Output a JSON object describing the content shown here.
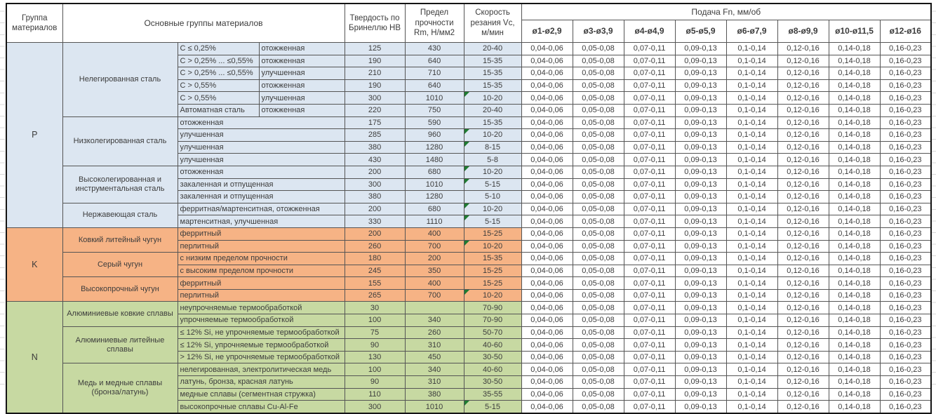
{
  "header": {
    "col_group": "Группа материалов",
    "col_materials": "Основные группы материалов",
    "col_hb": "Твердость по Бринеллю HB",
    "col_rm": "Предел прочности Rm, Н/мм2",
    "col_vc": "Скорость резания Vc, м/мин",
    "feed_title": "Подача Fn, мм/об",
    "feed_cols": [
      "ø1-ø2,9",
      "ø3-ø3,9",
      "ø4-ø4,9",
      "ø5-ø5,9",
      "ø6-ø7,9",
      "ø8-ø9,9",
      "ø10-ø11,5",
      "ø12-ø16"
    ]
  },
  "colors": {
    "p": "#dce6f1",
    "k": "#f6b385",
    "n": "#c7d9a2",
    "marker": "#1e7b31"
  },
  "feed_values": [
    "0,04-0,06",
    "0,05-0,08",
    "0,07-0,11",
    "0,09-0,13",
    "0,1-0,14",
    "0,12-0,16",
    "0,14-0,18",
    "0,16-0,23"
  ],
  "groups": [
    {
      "letter": "P",
      "color_key": "p",
      "subgroups": [
        {
          "name": "Нелегированная сталь",
          "rows": [
            {
              "desc": [
                "C ≤ 0,25%",
                "отожженная"
              ],
              "hb": "125",
              "rm": "430",
              "vc": "20-40",
              "marker": false
            },
            {
              "desc": [
                "C > 0,25% ... ≤0,55%",
                "отожженная"
              ],
              "hb": "190",
              "rm": "640",
              "vc": "15-35",
              "marker": false
            },
            {
              "desc": [
                "C > 0,25% ... ≤0,55%",
                "улучшенная"
              ],
              "hb": "210",
              "rm": "710",
              "vc": "15-35",
              "marker": false
            },
            {
              "desc": [
                "C > 0,55%",
                "отожженная"
              ],
              "hb": "190",
              "rm": "640",
              "vc": "15-35",
              "marker": false
            },
            {
              "desc": [
                "C > 0,55%",
                "улучшенная"
              ],
              "hb": "300",
              "rm": "1010",
              "vc": "10-20",
              "marker": true
            },
            {
              "desc": [
                "Автоматная сталь",
                "отожженная"
              ],
              "hb": "220",
              "rm": "750",
              "vc": "20-40",
              "marker": false
            }
          ]
        },
        {
          "name": "Низколегированная сталь",
          "rows": [
            {
              "desc": [
                "отожженная"
              ],
              "hb": "175",
              "rm": "590",
              "vc": "15-35",
              "marker": false
            },
            {
              "desc": [
                "улучшенная"
              ],
              "hb": "285",
              "rm": "960",
              "vc": "10-20",
              "marker": true
            },
            {
              "desc": [
                "улучшенная"
              ],
              "hb": "380",
              "rm": "1280",
              "vc": "8-15",
              "marker": true
            },
            {
              "desc": [
                "улучшенная"
              ],
              "hb": "430",
              "rm": "1480",
              "vc": "5-8",
              "marker": false
            }
          ]
        },
        {
          "name": "Высоколегированная и инструментальная сталь",
          "rows": [
            {
              "desc": [
                "отожженная"
              ],
              "hb": "200",
              "rm": "680",
              "vc": "10-20",
              "marker": true
            },
            {
              "desc": [
                "закаленная и отпущенная"
              ],
              "hb": "300",
              "rm": "1010",
              "vc": "5-15",
              "marker": true
            },
            {
              "desc": [
                "закаленная и отпущенная"
              ],
              "hb": "380",
              "rm": "1280",
              "vc": "5-10",
              "marker": false
            }
          ]
        },
        {
          "name": "Нержавеющая сталь",
          "rows": [
            {
              "desc": [
                "ферритная/мартенситная, отожженная"
              ],
              "hb": "200",
              "rm": "680",
              "vc": "10-20",
              "marker": true
            },
            {
              "desc": [
                "мартенситная, улучшенная"
              ],
              "hb": "330",
              "rm": "1110",
              "vc": "5-15",
              "marker": true
            }
          ]
        }
      ]
    },
    {
      "letter": "K",
      "color_key": "k",
      "subgroups": [
        {
          "name": "Ковкий литейный чугун",
          "rows": [
            {
              "desc": [
                "ферритный"
              ],
              "hb": "200",
              "rm": "400",
              "vc": "15-25",
              "marker": false
            },
            {
              "desc": [
                "перлитный"
              ],
              "hb": "260",
              "rm": "700",
              "vc": "10-20",
              "marker": true
            }
          ]
        },
        {
          "name": "Серый чугун",
          "rows": [
            {
              "desc": [
                "с низким пределом прочности"
              ],
              "hb": "180",
              "rm": "200",
              "vc": "15-35",
              "marker": false
            },
            {
              "desc": [
                "с высоким пределом прочности"
              ],
              "hb": "245",
              "rm": "350",
              "vc": "15-25",
              "marker": false
            }
          ]
        },
        {
          "name": "Высокопрочный чугун",
          "rows": [
            {
              "desc": [
                "ферритный"
              ],
              "hb": "155",
              "rm": "400",
              "vc": "15-25",
              "marker": false
            },
            {
              "desc": [
                "перлитный"
              ],
              "hb": "265",
              "rm": "700",
              "vc": "10-20",
              "marker": true
            }
          ]
        }
      ]
    },
    {
      "letter": "N",
      "color_key": "n",
      "subgroups": [
        {
          "name": "Алюминиевые ковкие сплавы",
          "rows": [
            {
              "desc": [
                "неупрочняемые термообработкой"
              ],
              "hb": "30",
              "rm": "",
              "vc": "70-90",
              "marker": false
            },
            {
              "desc": [
                "упрочняемые термообработкой"
              ],
              "hb": "100",
              "rm": "340",
              "vc": "70-90",
              "marker": false
            }
          ]
        },
        {
          "name": "Алюминиевые литейные сплавы",
          "rows": [
            {
              "desc": [
                "≤ 12% Si, не упрочняемые термообработкой"
              ],
              "hb": "75",
              "rm": "260",
              "vc": "50-70",
              "marker": false
            },
            {
              "desc": [
                "≤ 12% Si, упрочняемые термообработкой"
              ],
              "hb": "90",
              "rm": "310",
              "vc": "40-60",
              "marker": false
            },
            {
              "desc": [
                "> 12% Si, не упрочняемые термообработкой"
              ],
              "hb": "130",
              "rm": "450",
              "vc": "30-50",
              "marker": false
            }
          ]
        },
        {
          "name": "Медь и медные сплавы (бронза/латунь)",
          "rows": [
            {
              "desc": [
                "нелегированная, электролитическая медь"
              ],
              "hb": "100",
              "rm": "340",
              "vc": "40-60",
              "marker": false
            },
            {
              "desc": [
                "латунь, бронза, красная латунь"
              ],
              "hb": "90",
              "rm": "310",
              "vc": "30-50",
              "marker": false
            },
            {
              "desc": [
                "медные сплавы (сегментная стружка)"
              ],
              "hb": "110",
              "rm": "380",
              "vc": "35-55",
              "marker": false
            },
            {
              "desc": [
                "высокопрочные сплавы Cu-Al-Fe"
              ],
              "hb": "300",
              "rm": "1010",
              "vc": "5-15",
              "marker": true
            }
          ]
        }
      ]
    }
  ]
}
